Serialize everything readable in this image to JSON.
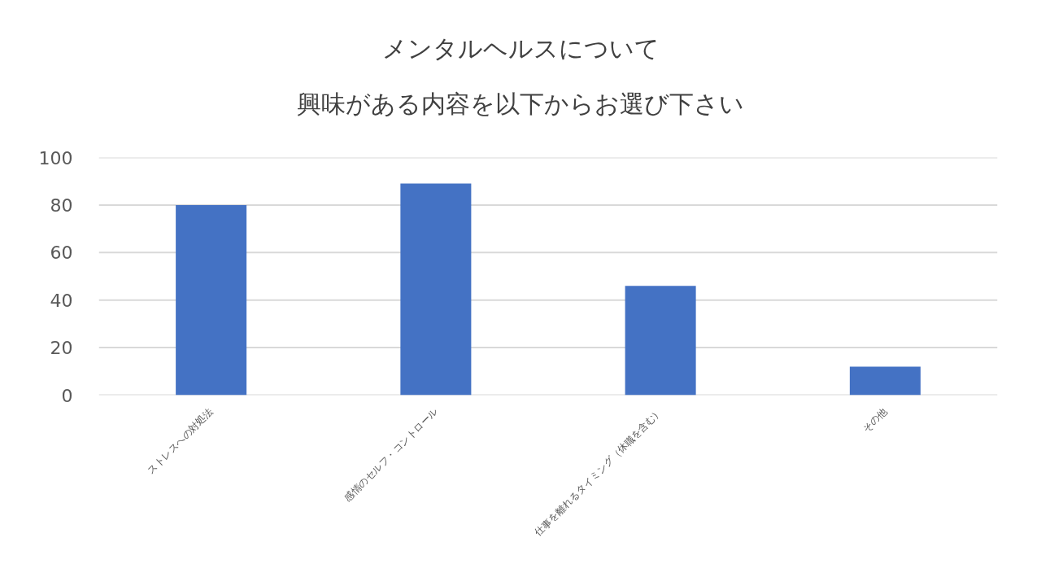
{
  "chart_data": {
    "type": "bar",
    "title": "メンタルヘルスについて",
    "subtitle": "興味がある内容を以下からお選び下さい",
    "categories": [
      "ストレスへの対処法",
      "感情のセルフ・コントロール",
      "仕事を離れるタイミング（休職を含む）",
      "その他"
    ],
    "values": [
      80,
      89,
      46,
      12
    ],
    "color": "#4472c4",
    "ylim": [
      0,
      100
    ],
    "yticks": [
      0,
      20,
      40,
      60,
      80,
      100
    ],
    "grid": "y",
    "legend": false
  }
}
